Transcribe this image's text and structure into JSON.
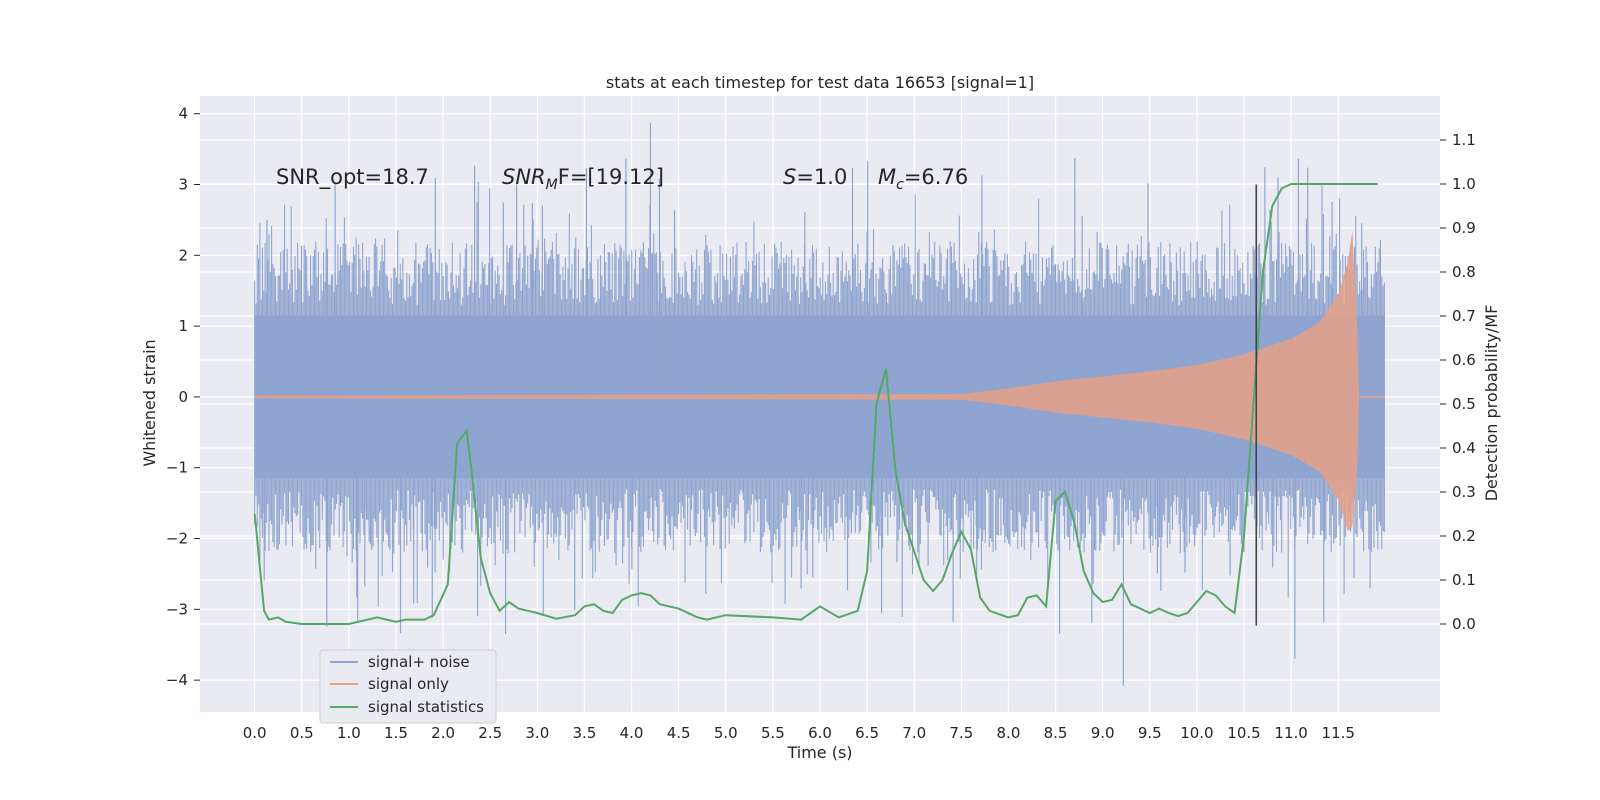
{
  "chart_data": {
    "type": "line",
    "title": "stats at each timestep for test data 16653 [signal=1]",
    "xlabel": "Time (s)",
    "ylabel_left": "Whitened strain",
    "ylabel_right": "Detection probability/MF",
    "xlim": [
      -0.58,
      12.58
    ],
    "ylim_left": [
      -4.45,
      4.25
    ],
    "ylim_right": [
      -0.2,
      1.2
    ],
    "grid": true,
    "legend_position": "lower-left",
    "x_ticks": [
      "0.0",
      "0.5",
      "1.0",
      "1.5",
      "2.0",
      "2.5",
      "3.0",
      "3.5",
      "4.0",
      "4.5",
      "5.0",
      "5.5",
      "6.0",
      "6.5",
      "7.0",
      "7.5",
      "8.0",
      "8.5",
      "9.0",
      "9.5",
      "10.0",
      "10.5",
      "11.0",
      "11.5"
    ],
    "y_left_ticks": [
      "4",
      "3",
      "2",
      "1",
      "0",
      "−1",
      "−2",
      "−3",
      "−4"
    ],
    "y_right_ticks": [
      "1.1",
      "1.0",
      "0.9",
      "0.8",
      "0.7",
      "0.6",
      "0.5",
      "0.4",
      "0.3",
      "0.2",
      "0.1",
      "0.0"
    ],
    "annotations": {
      "snr_opt": "SNR_opt=18.7",
      "snr_mf_base": "SNR",
      "snr_mf_sub": "M",
      "snr_mf_rest": "F=[19.12]",
      "s_var": "S",
      "s_rest": "=1.0",
      "mc_var": "M",
      "mc_sub": "c",
      "mc_rest": "=6.76"
    },
    "vertical_marker": {
      "x": 10.63,
      "y_range": [
        -3.23,
        3.0
      ],
      "color": "#444444"
    },
    "noise_band": {
      "name": "signal+ noise",
      "color": "#8fa5d0",
      "x_range": [
        0.0,
        11.99
      ],
      "typical_amplitude": 2.0,
      "max_value": 3.87,
      "min_value": -4.08
    },
    "signal_only": {
      "name": "signal only",
      "color": "#e6a087",
      "envelope_x": [
        0.0,
        7.5,
        8.0,
        8.5,
        9.0,
        9.5,
        10.0,
        10.5,
        11.0,
        11.3,
        11.5,
        11.6,
        11.65,
        11.7,
        11.72
      ],
      "envelope_amp": [
        0.02,
        0.04,
        0.12,
        0.22,
        0.29,
        0.36,
        0.45,
        0.6,
        0.82,
        1.05,
        1.45,
        1.9,
        2.35,
        1.0,
        0.03
      ]
    },
    "series": [
      {
        "name": "signal statistics",
        "color": "#55a868",
        "axis": "right",
        "x": [
          0.0,
          0.1,
          0.15,
          0.25,
          0.33,
          0.5,
          0.6,
          0.8,
          1.0,
          1.2,
          1.3,
          1.4,
          1.5,
          1.6,
          1.8,
          1.9,
          2.05,
          2.15,
          2.25,
          2.3,
          2.4,
          2.5,
          2.6,
          2.7,
          2.8,
          2.9,
          3.0,
          3.2,
          3.4,
          3.5,
          3.6,
          3.7,
          3.8,
          3.9,
          4.0,
          4.1,
          4.2,
          4.3,
          4.5,
          4.7,
          4.8,
          5.0,
          5.5,
          5.8,
          6.0,
          6.2,
          6.4,
          6.5,
          6.6,
          6.7,
          6.8,
          6.9,
          7.1,
          7.2,
          7.3,
          7.4,
          7.5,
          7.6,
          7.7,
          7.8,
          8.0,
          8.1,
          8.2,
          8.3,
          8.4,
          8.5,
          8.6,
          8.7,
          8.8,
          8.9,
          9.0,
          9.1,
          9.2,
          9.3,
          9.5,
          9.6,
          9.7,
          9.8,
          9.9,
          10.0,
          10.1,
          10.2,
          10.3,
          10.4,
          10.5,
          10.6,
          10.7,
          10.8,
          10.9,
          11.0,
          11.5,
          11.92
        ],
        "values": [
          0.25,
          0.03,
          0.01,
          0.015,
          0.005,
          0.0,
          0.0,
          0.0,
          0.0,
          0.01,
          0.015,
          0.01,
          0.005,
          0.01,
          0.01,
          0.02,
          0.09,
          0.41,
          0.44,
          0.35,
          0.15,
          0.07,
          0.03,
          0.05,
          0.035,
          0.03,
          0.025,
          0.012,
          0.02,
          0.04,
          0.045,
          0.03,
          0.025,
          0.055,
          0.065,
          0.07,
          0.065,
          0.045,
          0.035,
          0.015,
          0.01,
          0.02,
          0.015,
          0.01,
          0.04,
          0.015,
          0.03,
          0.12,
          0.5,
          0.58,
          0.35,
          0.23,
          0.1,
          0.075,
          0.1,
          0.16,
          0.21,
          0.17,
          0.06,
          0.03,
          0.015,
          0.02,
          0.06,
          0.065,
          0.04,
          0.28,
          0.3,
          0.23,
          0.12,
          0.07,
          0.05,
          0.055,
          0.09,
          0.045,
          0.025,
          0.035,
          0.025,
          0.018,
          0.025,
          0.05,
          0.075,
          0.065,
          0.04,
          0.025,
          0.2,
          0.5,
          0.8,
          0.95,
          0.99,
          1.0,
          1.0,
          1.0
        ]
      }
    ]
  },
  "legend": {
    "items": [
      {
        "label": "signal+ noise",
        "color": "#8fa5d0"
      },
      {
        "label": "signal only",
        "color": "#e6a087"
      },
      {
        "label": "signal statistics",
        "color": "#55a868"
      }
    ]
  }
}
